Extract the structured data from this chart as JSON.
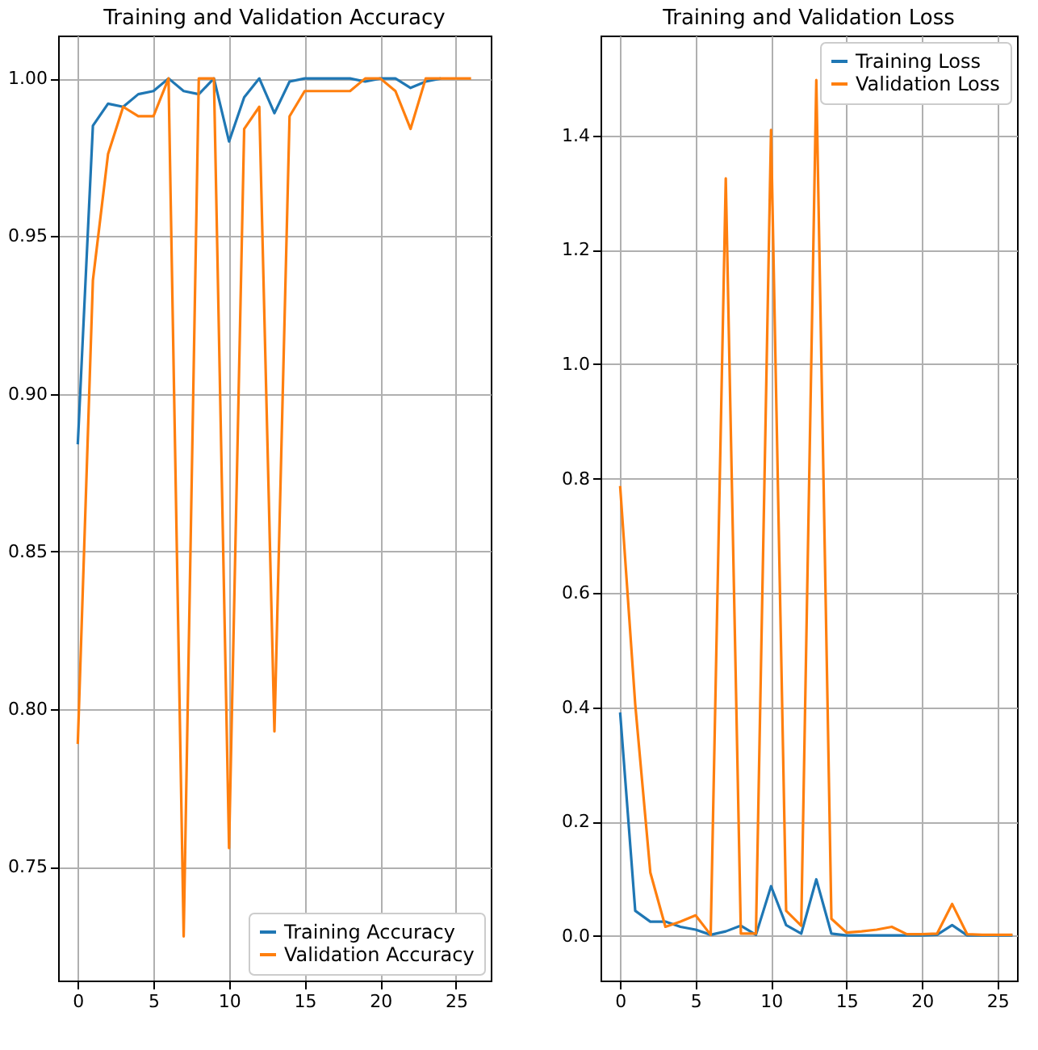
{
  "chart_data": [
    {
      "type": "line",
      "title": "Training and Validation Accuracy",
      "x": [
        0,
        1,
        2,
        3,
        4,
        5,
        6,
        7,
        8,
        9,
        10,
        11,
        12,
        13,
        14,
        15,
        16,
        17,
        18,
        19,
        20,
        21,
        22,
        23,
        24,
        25,
        26
      ],
      "series": [
        {
          "name": "Training Accuracy",
          "color": "#1f77b4",
          "values": [
            0.884,
            0.985,
            0.992,
            0.991,
            0.995,
            0.996,
            1.0,
            0.996,
            0.995,
            1.0,
            0.98,
            0.994,
            1.0,
            0.989,
            0.999,
            1.0,
            1.0,
            1.0,
            1.0,
            0.999,
            1.0,
            1.0,
            0.997,
            0.999,
            1.0,
            null,
            null
          ]
        },
        {
          "name": "Validation Accuracy",
          "color": "#ff7f0e",
          "values": [
            0.789,
            0.936,
            0.976,
            0.991,
            0.988,
            0.988,
            1.0,
            0.728,
            1.0,
            1.0,
            0.756,
            0.984,
            0.991,
            0.793,
            0.988,
            0.996,
            0.996,
            0.996,
            0.996,
            1.0,
            1.0,
            0.996,
            0.984,
            1.0,
            1.0,
            1.0,
            1.0
          ]
        }
      ],
      "xlim": [
        -1.3,
        27.3
      ],
      "xticks": [
        0,
        5,
        10,
        15,
        20,
        25
      ],
      "ylim": [
        0.714,
        1.0136
      ],
      "yticks": [
        {
          "value": 0.75,
          "label": "0.75"
        },
        {
          "value": 0.8,
          "label": "0.80"
        },
        {
          "value": 0.85,
          "label": "0.85"
        },
        {
          "value": 0.9,
          "label": "0.90"
        },
        {
          "value": 0.95,
          "label": "0.95"
        },
        {
          "value": 1.0,
          "label": "1.00"
        }
      ],
      "grid": true,
      "legend": "bottom right",
      "line_style": "solid"
    },
    {
      "type": "line",
      "title": "Training and Validation Loss",
      "x": [
        0,
        1,
        2,
        3,
        4,
        5,
        6,
        7,
        8,
        9,
        10,
        11,
        12,
        13,
        14,
        15,
        16,
        17,
        18,
        19,
        20,
        21,
        22,
        23,
        24,
        25,
        26
      ],
      "series": [
        {
          "name": "Training Loss",
          "color": "#1f77b4",
          "values": [
            0.391,
            0.044,
            0.025,
            0.025,
            0.016,
            0.011,
            0.002,
            0.008,
            0.018,
            0.002,
            0.087,
            0.019,
            0.004,
            0.099,
            0.004,
            0.001,
            0.001,
            0.001,
            0.001,
            0.001,
            0.001,
            0.002,
            0.019,
            0.001,
            0.001,
            0.001,
            0.001
          ]
        },
        {
          "name": "Validation Loss",
          "color": "#ff7f0e",
          "values": [
            0.787,
            0.405,
            0.111,
            0.016,
            0.025,
            0.036,
            0.002,
            1.325,
            0.004,
            0.004,
            1.41,
            0.044,
            0.018,
            1.497,
            0.03,
            0.006,
            0.008,
            0.011,
            0.016,
            0.003,
            0.003,
            0.004,
            0.056,
            0.003,
            0.002,
            0.002,
            0.002
          ]
        }
      ],
      "xlim": [
        -1.3,
        26.3
      ],
      "xticks": [
        0,
        5,
        10,
        15,
        20,
        25
      ],
      "ylim": [
        -0.078,
        1.575
      ],
      "yticks": [
        {
          "value": 0,
          "label": "0.0"
        },
        {
          "value": 0.2,
          "label": "0.2"
        },
        {
          "value": 0.4,
          "label": "0.4"
        },
        {
          "value": 0.6,
          "label": "0.6"
        },
        {
          "value": 0.8,
          "label": "0.8"
        },
        {
          "value": 1.0,
          "label": "1.0"
        },
        {
          "value": 1.2,
          "label": "1.2"
        },
        {
          "value": 1.4,
          "label": "1.4"
        }
      ],
      "grid": true,
      "legend": "top right",
      "line_style": "solid"
    }
  ]
}
